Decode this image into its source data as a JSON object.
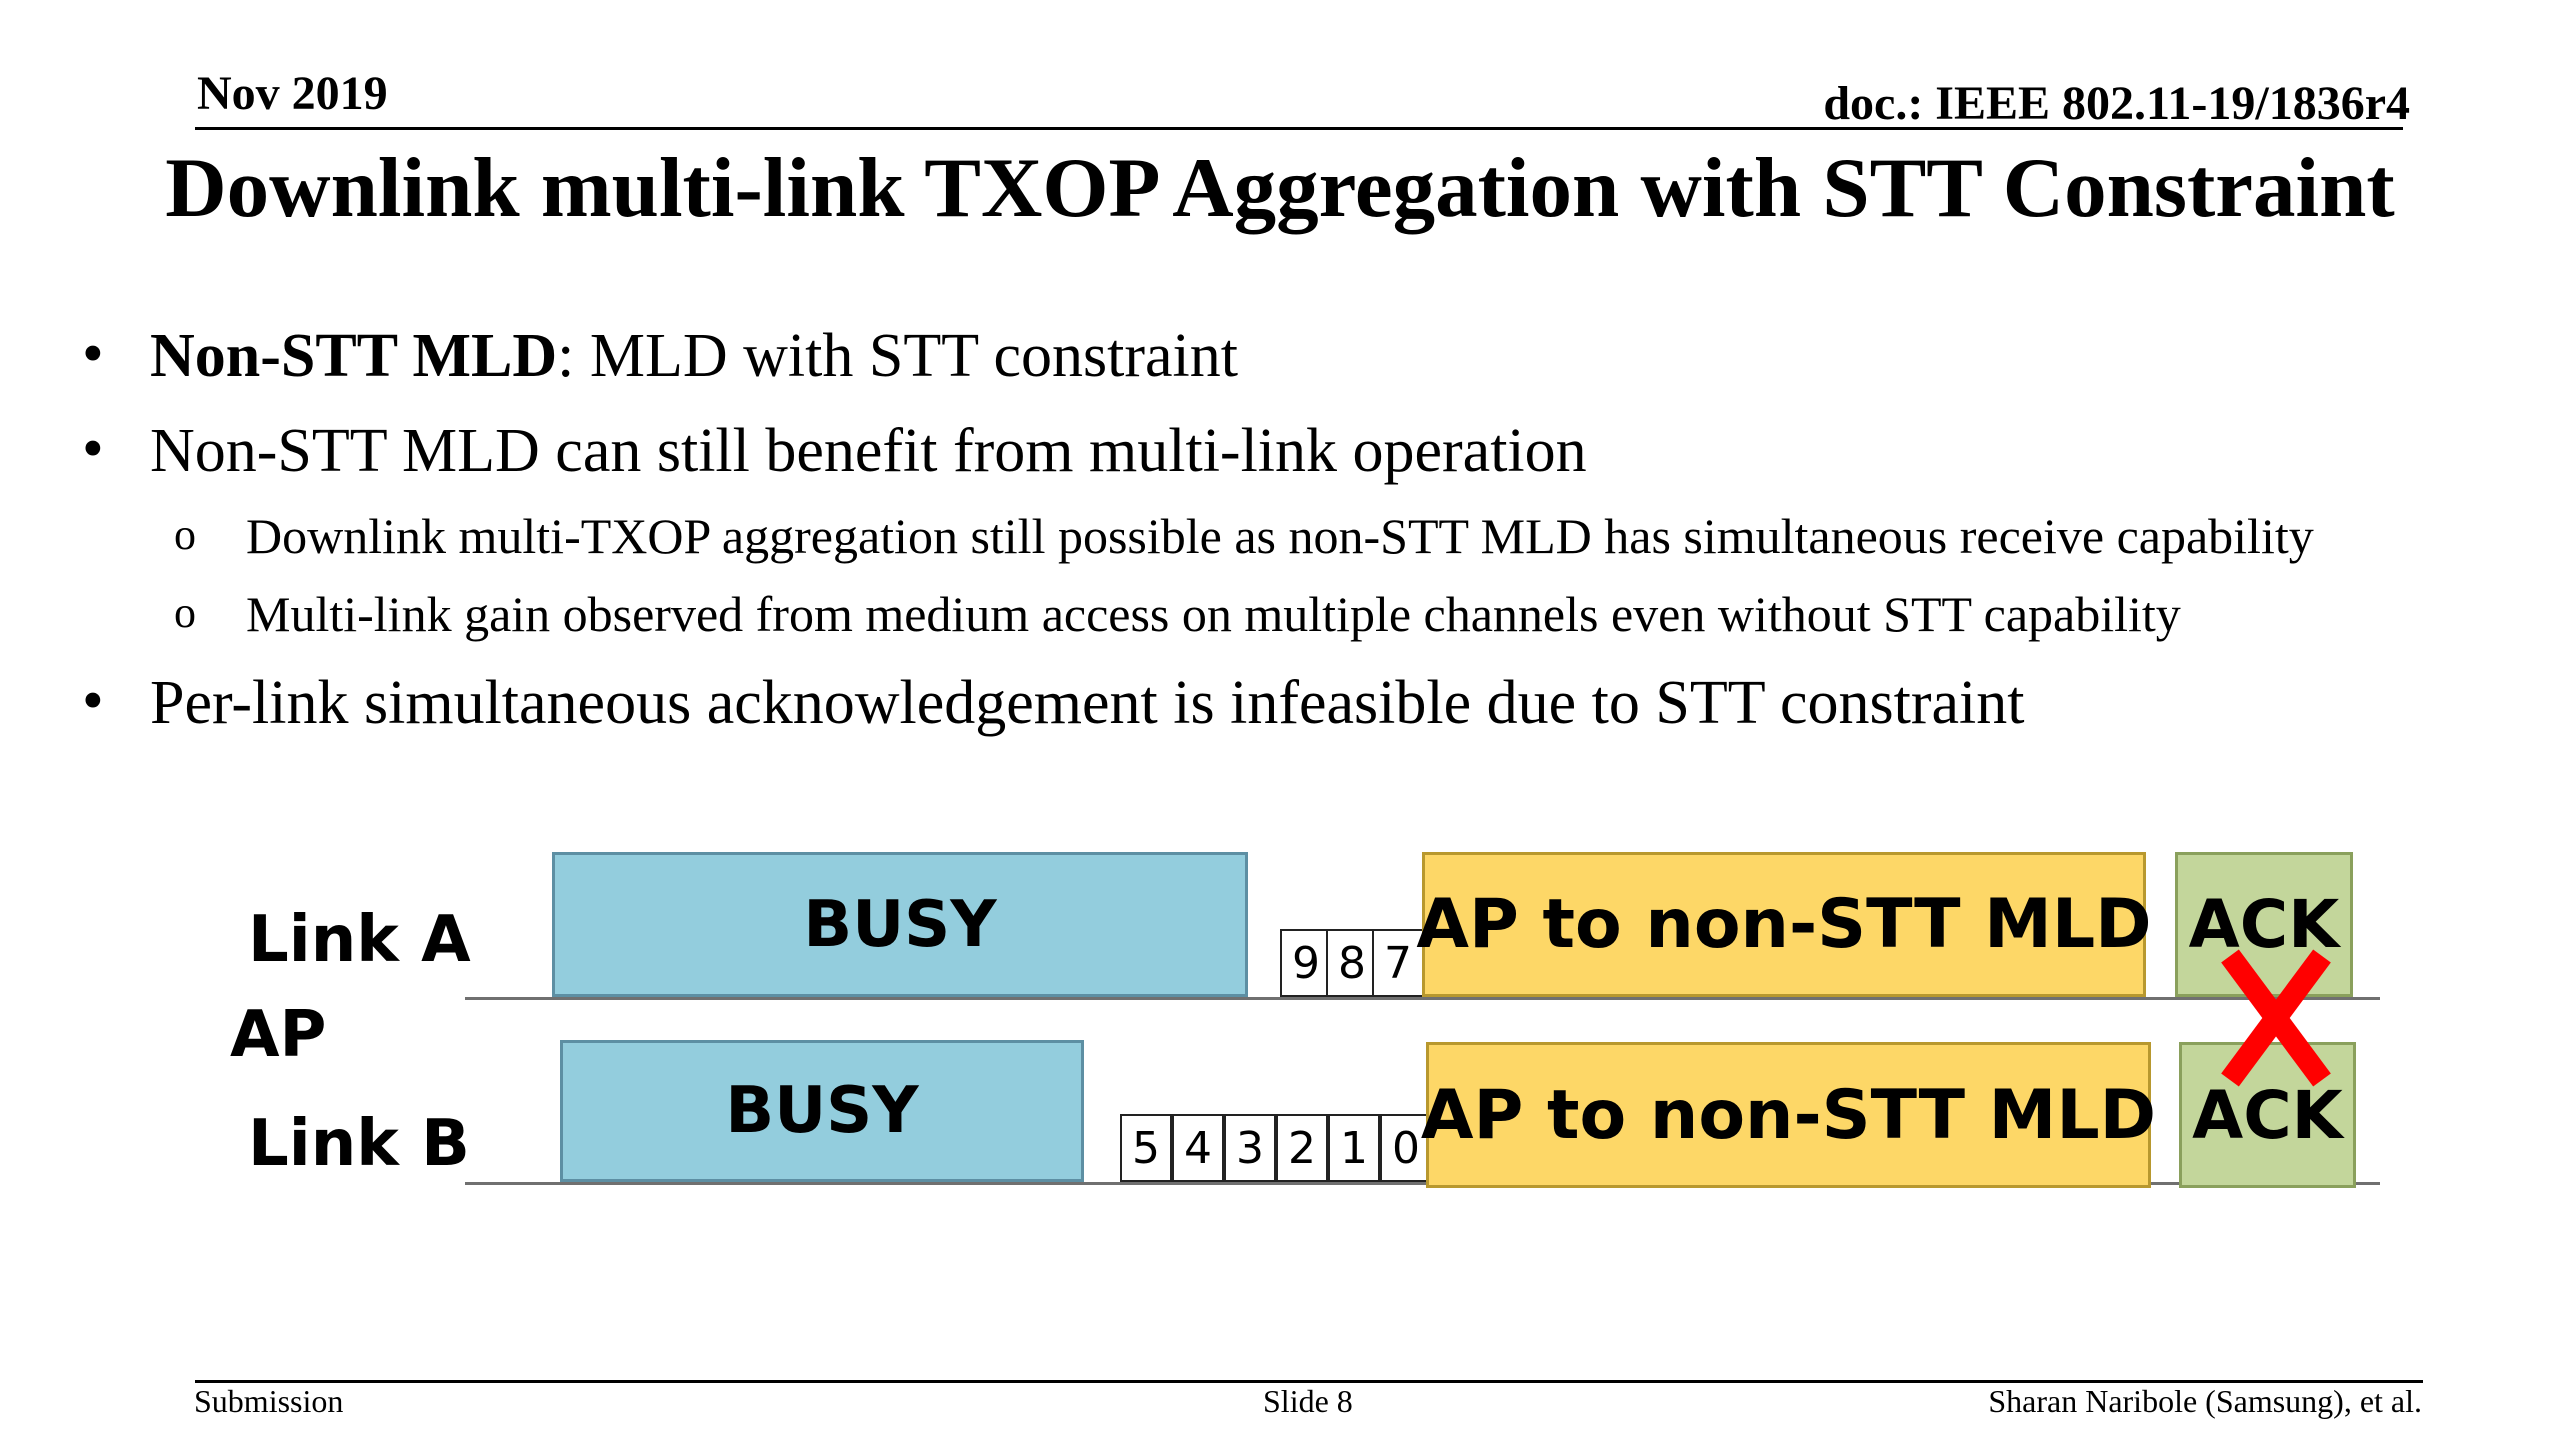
{
  "header": {
    "date": "Nov 2019",
    "doc": "doc.: IEEE 802.11-19/1836r4"
  },
  "title": "Downlink multi-link TXOP Aggregation with STT Constraint",
  "bullets": [
    {
      "level": 1,
      "bold": "Non-STT MLD",
      "text": ": MLD with STT constraint"
    },
    {
      "level": 1,
      "text": "Non-STT MLD can still benefit from multi-link operation"
    },
    {
      "level": 2,
      "text": "Downlink multi-TXOP aggregation still possible as non-STT MLD has simultaneous receive capability"
    },
    {
      "level": 2,
      "text": "Multi-link gain observed from medium access on multiple channels even without STT capability"
    },
    {
      "level": 1,
      "text": "Per-link simultaneous acknowledgement is infeasible due to STT constraint"
    }
  ],
  "bullet_marks": {
    "level1": "•",
    "level2": "o"
  },
  "diagram": {
    "ap_label": "AP",
    "link_a": {
      "label": "Link A",
      "busy": "BUSY",
      "backoff": [
        "9",
        "8",
        "7"
      ],
      "tx": "AP to non-STT MLD",
      "ack": "ACK"
    },
    "link_b": {
      "label": "Link B",
      "busy": "BUSY",
      "backoff": [
        "5",
        "4",
        "3",
        "2",
        "1",
        "0"
      ],
      "tx": "AP to non-STT MLD",
      "ack": "ACK"
    },
    "x_mark_color": "#ff0000",
    "colors": {
      "busy": "#93cddd",
      "tx": "#fdd767",
      "ack": "#c3d69b"
    }
  },
  "footer": {
    "left": "Submission",
    "center": "Slide 8",
    "right": "Sharan Naribole (Samsung), et al."
  }
}
